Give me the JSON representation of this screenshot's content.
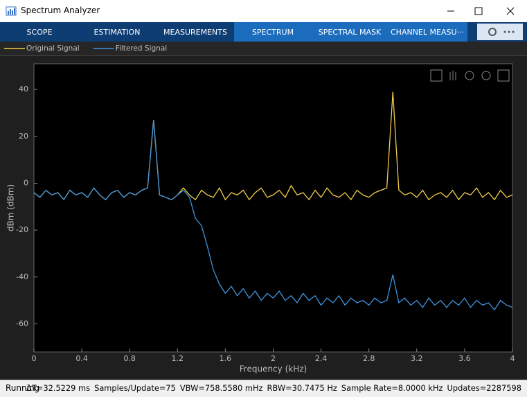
{
  "window": {
    "title": "Spectrum Analyzer"
  },
  "tabs": [
    "SCOPE",
    "ESTIMATION",
    "MEASUREMENTS",
    "SPECTRUM",
    "SPECTRAL MASK",
    "CHANNEL MEASU···"
  ],
  "chart_data": {
    "type": "line",
    "xlabel": "Frequency (kHz)",
    "ylabel": "dBm (dBm)",
    "x": [
      0,
      0.05,
      0.1,
      0.15,
      0.2,
      0.25,
      0.3,
      0.35,
      0.4,
      0.45,
      0.5,
      0.55,
      0.6,
      0.65,
      0.7,
      0.75,
      0.8,
      0.85,
      0.9,
      0.95,
      1,
      1.05,
      1.1,
      1.15,
      1.2,
      1.25,
      1.3,
      1.35,
      1.4,
      1.45,
      1.5,
      1.55,
      1.6,
      1.65,
      1.7,
      1.75,
      1.8,
      1.85,
      1.9,
      1.95,
      2,
      2.05,
      2.1,
      2.15,
      2.2,
      2.25,
      2.3,
      2.35,
      2.4,
      2.45,
      2.5,
      2.55,
      2.6,
      2.65,
      2.7,
      2.75,
      2.8,
      2.85,
      2.9,
      2.95,
      3,
      3.05,
      3.1,
      3.15,
      3.2,
      3.25,
      3.3,
      3.35,
      3.4,
      3.45,
      3.5,
      3.55,
      3.6,
      3.65,
      3.7,
      3.75,
      3.8,
      3.85,
      3.9,
      3.95,
      4
    ],
    "series": [
      {
        "name": "Original Signal",
        "color": "#f2cf4a",
        "values": [
          -4,
          -6,
          -3,
          -5,
          -4,
          -7,
          -3,
          -5,
          -4,
          -6,
          -2,
          -5,
          -7,
          -4,
          -3,
          -6,
          -4,
          -5,
          -3,
          -2,
          27,
          -5,
          -6,
          -7,
          -5,
          -2,
          -5,
          -7,
          -3,
          -5,
          -6,
          -2,
          -7,
          -4,
          -5,
          -3,
          -7,
          -4,
          -2,
          -6,
          -5,
          -3,
          -6,
          -1,
          -5,
          -4,
          -7,
          -3,
          -6,
          -2,
          -5,
          -6,
          -4,
          -7,
          -3,
          -5,
          -6,
          -4,
          -3,
          -2,
          39,
          -3,
          -5,
          -4,
          -6,
          -3,
          -7,
          -5,
          -4,
          -6,
          -3,
          -7,
          -4,
          -5,
          -2,
          -6,
          -4,
          -7,
          -3,
          -6,
          -5
        ]
      },
      {
        "name": "Filtered Signal",
        "color": "#3f94e0",
        "values": [
          -4,
          -6,
          -3,
          -5,
          -4,
          -7,
          -3,
          -5,
          -4,
          -6,
          -2,
          -5,
          -7,
          -4,
          -3,
          -6,
          -4,
          -5,
          -3,
          -2,
          27,
          -5,
          -6,
          -7,
          -5,
          -3,
          -6,
          -15,
          -18,
          -27,
          -37,
          -43,
          -47,
          -44,
          -48,
          -45,
          -49,
          -46,
          -50,
          -47,
          -49,
          -46,
          -50,
          -48,
          -51,
          -47,
          -50,
          -48,
          -52,
          -49,
          -51,
          -48,
          -52,
          -49,
          -51,
          -50,
          -52,
          -49,
          -51,
          -50,
          -39,
          -51,
          -49,
          -52,
          -50,
          -53,
          -49,
          -52,
          -50,
          -53,
          -50,
          -52,
          -49,
          -53,
          -50,
          -52,
          -51,
          -54,
          -50,
          -52,
          -53
        ]
      }
    ],
    "xlim": [
      0,
      4
    ],
    "xticks": [
      0,
      0.4,
      0.8,
      1.2,
      1.6,
      2,
      2.4,
      2.8,
      3.2,
      3.6,
      4
    ],
    "ylim": [
      -72,
      51
    ],
    "yticks": [
      -60,
      -40,
      -20,
      0,
      20,
      40
    ],
    "grid": false,
    "legend": "top-left"
  },
  "status": {
    "state": "Running",
    "items": [
      "ΔT=32.5229 ms",
      "Samples/Update=75",
      "VBW=758.5580 mHz",
      "RBW=30.7475 Hz",
      "Sample Rate=8.0000 kHz",
      "Updates=2287598"
    ]
  }
}
